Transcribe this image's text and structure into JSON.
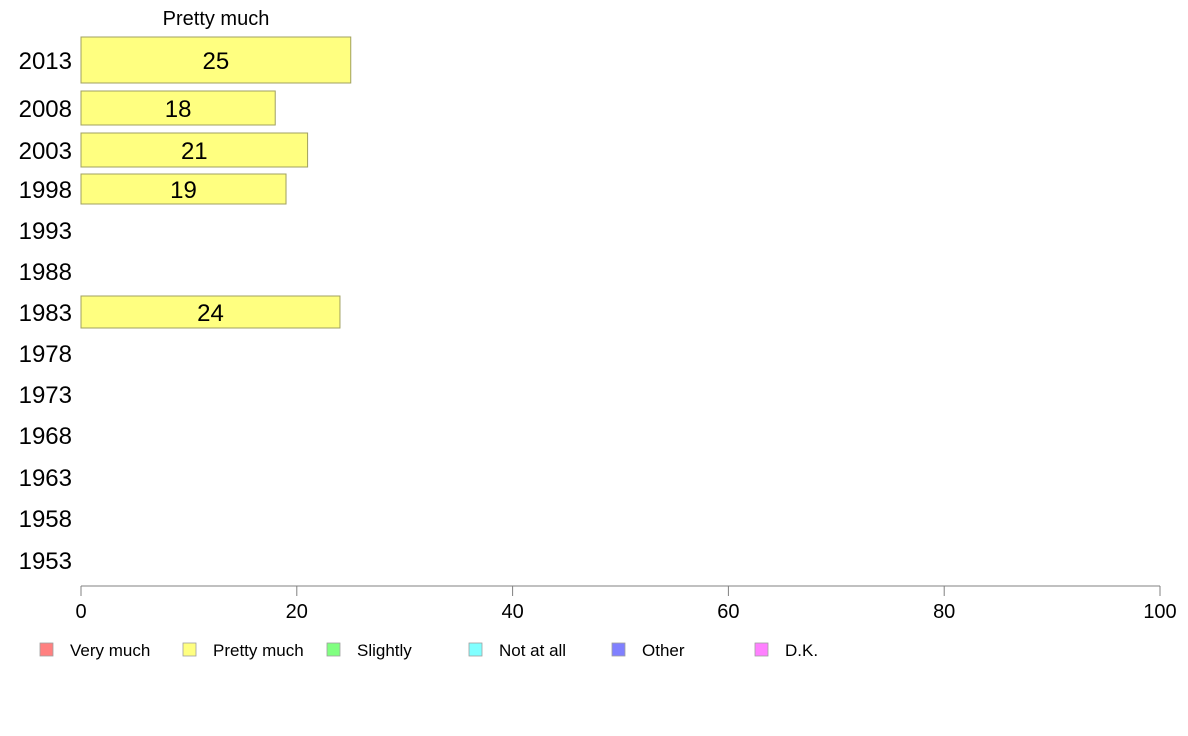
{
  "chart_data": {
    "type": "bar",
    "orientation": "horizontal",
    "title": "Pretty much",
    "categories": [
      "2013",
      "2008",
      "2003",
      "1998",
      "1993",
      "1988",
      "1983",
      "1978",
      "1973",
      "1968",
      "1963",
      "1958",
      "1953"
    ],
    "series": [
      {
        "name": "Pretty much",
        "color": "#ffff80",
        "values": [
          25,
          18,
          21,
          19,
          null,
          null,
          24,
          null,
          null,
          null,
          null,
          null,
          null
        ]
      }
    ],
    "xlim": [
      0,
      100
    ],
    "xticks": [
      0,
      20,
      40,
      60,
      80,
      100
    ],
    "grid": false,
    "legend_position": "bottom",
    "legend": [
      {
        "label": "Very much",
        "color": "#ff8080"
      },
      {
        "label": "Pretty much",
        "color": "#ffff80"
      },
      {
        "label": "Slightly",
        "color": "#80ff80"
      },
      {
        "label": "Not at all",
        "color": "#80ffff"
      },
      {
        "label": "Other",
        "color": "#8080ff"
      },
      {
        "label": "D.K.",
        "color": "#ff80ff"
      }
    ]
  }
}
